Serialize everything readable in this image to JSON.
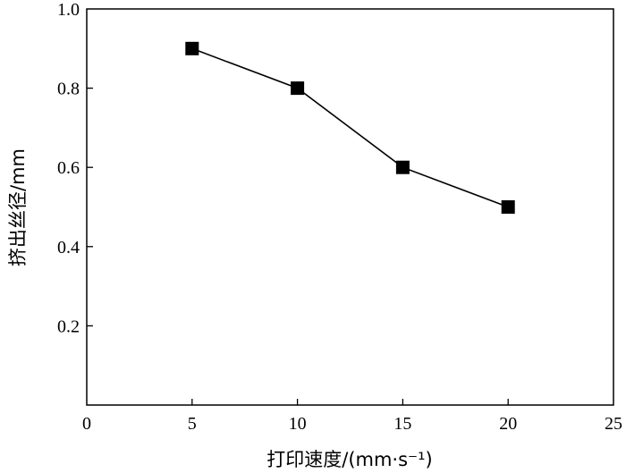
{
  "chart_data": {
    "type": "line",
    "title": "",
    "xlabel": "打印速度/(mm·s⁻¹)",
    "ylabel": "挤出丝径/mm",
    "xlim": [
      0,
      25
    ],
    "ylim": [
      0,
      1.0
    ],
    "x_ticks": [
      "0",
      "5",
      "10",
      "15",
      "20",
      "25"
    ],
    "y_ticks": [
      "0.2",
      "0.4",
      "0.6",
      "0.8",
      "1.0"
    ],
    "x_tick_values": [
      0,
      5,
      10,
      15,
      20,
      25
    ],
    "y_tick_values": [
      0.2,
      0.4,
      0.6,
      0.8,
      1.0
    ],
    "series": [
      {
        "x": [
          5,
          10,
          15,
          20
        ],
        "values": [
          0.9,
          0.8,
          0.6,
          0.5
        ],
        "marker": "square",
        "color": "#000000"
      }
    ],
    "grid": false,
    "legend": "none"
  }
}
